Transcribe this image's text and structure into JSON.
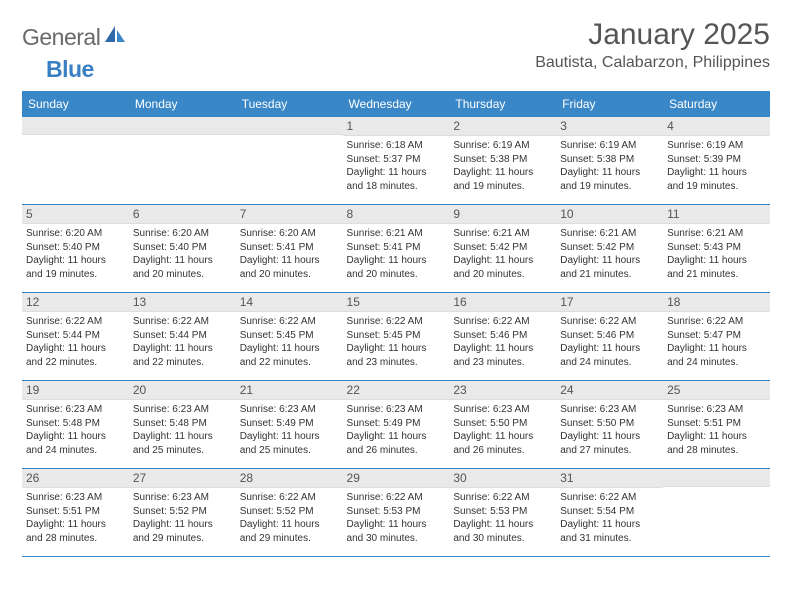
{
  "logo": {
    "part1": "General",
    "part2": "Blue"
  },
  "title": "January 2025",
  "location": "Bautista, Calabarzon, Philippines",
  "header_color": "#3a87c7",
  "day_headers": [
    "Sunday",
    "Monday",
    "Tuesday",
    "Wednesday",
    "Thursday",
    "Friday",
    "Saturday"
  ],
  "weeks": [
    [
      {
        "n": "",
        "sr": "",
        "ss": "",
        "dl": ""
      },
      {
        "n": "",
        "sr": "",
        "ss": "",
        "dl": ""
      },
      {
        "n": "",
        "sr": "",
        "ss": "",
        "dl": ""
      },
      {
        "n": "1",
        "sr": "6:18 AM",
        "ss": "5:37 PM",
        "dl": "11 hours and 18 minutes."
      },
      {
        "n": "2",
        "sr": "6:19 AM",
        "ss": "5:38 PM",
        "dl": "11 hours and 19 minutes."
      },
      {
        "n": "3",
        "sr": "6:19 AM",
        "ss": "5:38 PM",
        "dl": "11 hours and 19 minutes."
      },
      {
        "n": "4",
        "sr": "6:19 AM",
        "ss": "5:39 PM",
        "dl": "11 hours and 19 minutes."
      }
    ],
    [
      {
        "n": "5",
        "sr": "6:20 AM",
        "ss": "5:40 PM",
        "dl": "11 hours and 19 minutes."
      },
      {
        "n": "6",
        "sr": "6:20 AM",
        "ss": "5:40 PM",
        "dl": "11 hours and 20 minutes."
      },
      {
        "n": "7",
        "sr": "6:20 AM",
        "ss": "5:41 PM",
        "dl": "11 hours and 20 minutes."
      },
      {
        "n": "8",
        "sr": "6:21 AM",
        "ss": "5:41 PM",
        "dl": "11 hours and 20 minutes."
      },
      {
        "n": "9",
        "sr": "6:21 AM",
        "ss": "5:42 PM",
        "dl": "11 hours and 20 minutes."
      },
      {
        "n": "10",
        "sr": "6:21 AM",
        "ss": "5:42 PM",
        "dl": "11 hours and 21 minutes."
      },
      {
        "n": "11",
        "sr": "6:21 AM",
        "ss": "5:43 PM",
        "dl": "11 hours and 21 minutes."
      }
    ],
    [
      {
        "n": "12",
        "sr": "6:22 AM",
        "ss": "5:44 PM",
        "dl": "11 hours and 22 minutes."
      },
      {
        "n": "13",
        "sr": "6:22 AM",
        "ss": "5:44 PM",
        "dl": "11 hours and 22 minutes."
      },
      {
        "n": "14",
        "sr": "6:22 AM",
        "ss": "5:45 PM",
        "dl": "11 hours and 22 minutes."
      },
      {
        "n": "15",
        "sr": "6:22 AM",
        "ss": "5:45 PM",
        "dl": "11 hours and 23 minutes."
      },
      {
        "n": "16",
        "sr": "6:22 AM",
        "ss": "5:46 PM",
        "dl": "11 hours and 23 minutes."
      },
      {
        "n": "17",
        "sr": "6:22 AM",
        "ss": "5:46 PM",
        "dl": "11 hours and 24 minutes."
      },
      {
        "n": "18",
        "sr": "6:22 AM",
        "ss": "5:47 PM",
        "dl": "11 hours and 24 minutes."
      }
    ],
    [
      {
        "n": "19",
        "sr": "6:23 AM",
        "ss": "5:48 PM",
        "dl": "11 hours and 24 minutes."
      },
      {
        "n": "20",
        "sr": "6:23 AM",
        "ss": "5:48 PM",
        "dl": "11 hours and 25 minutes."
      },
      {
        "n": "21",
        "sr": "6:23 AM",
        "ss": "5:49 PM",
        "dl": "11 hours and 25 minutes."
      },
      {
        "n": "22",
        "sr": "6:23 AM",
        "ss": "5:49 PM",
        "dl": "11 hours and 26 minutes."
      },
      {
        "n": "23",
        "sr": "6:23 AM",
        "ss": "5:50 PM",
        "dl": "11 hours and 26 minutes."
      },
      {
        "n": "24",
        "sr": "6:23 AM",
        "ss": "5:50 PM",
        "dl": "11 hours and 27 minutes."
      },
      {
        "n": "25",
        "sr": "6:23 AM",
        "ss": "5:51 PM",
        "dl": "11 hours and 28 minutes."
      }
    ],
    [
      {
        "n": "26",
        "sr": "6:23 AM",
        "ss": "5:51 PM",
        "dl": "11 hours and 28 minutes."
      },
      {
        "n": "27",
        "sr": "6:23 AM",
        "ss": "5:52 PM",
        "dl": "11 hours and 29 minutes."
      },
      {
        "n": "28",
        "sr": "6:22 AM",
        "ss": "5:52 PM",
        "dl": "11 hours and 29 minutes."
      },
      {
        "n": "29",
        "sr": "6:22 AM",
        "ss": "5:53 PM",
        "dl": "11 hours and 30 minutes."
      },
      {
        "n": "30",
        "sr": "6:22 AM",
        "ss": "5:53 PM",
        "dl": "11 hours and 30 minutes."
      },
      {
        "n": "31",
        "sr": "6:22 AM",
        "ss": "5:54 PM",
        "dl": "11 hours and 31 minutes."
      },
      {
        "n": "",
        "sr": "",
        "ss": "",
        "dl": ""
      }
    ]
  ],
  "labels": {
    "sunrise": "Sunrise:",
    "sunset": "Sunset:",
    "daylight": "Daylight:"
  }
}
